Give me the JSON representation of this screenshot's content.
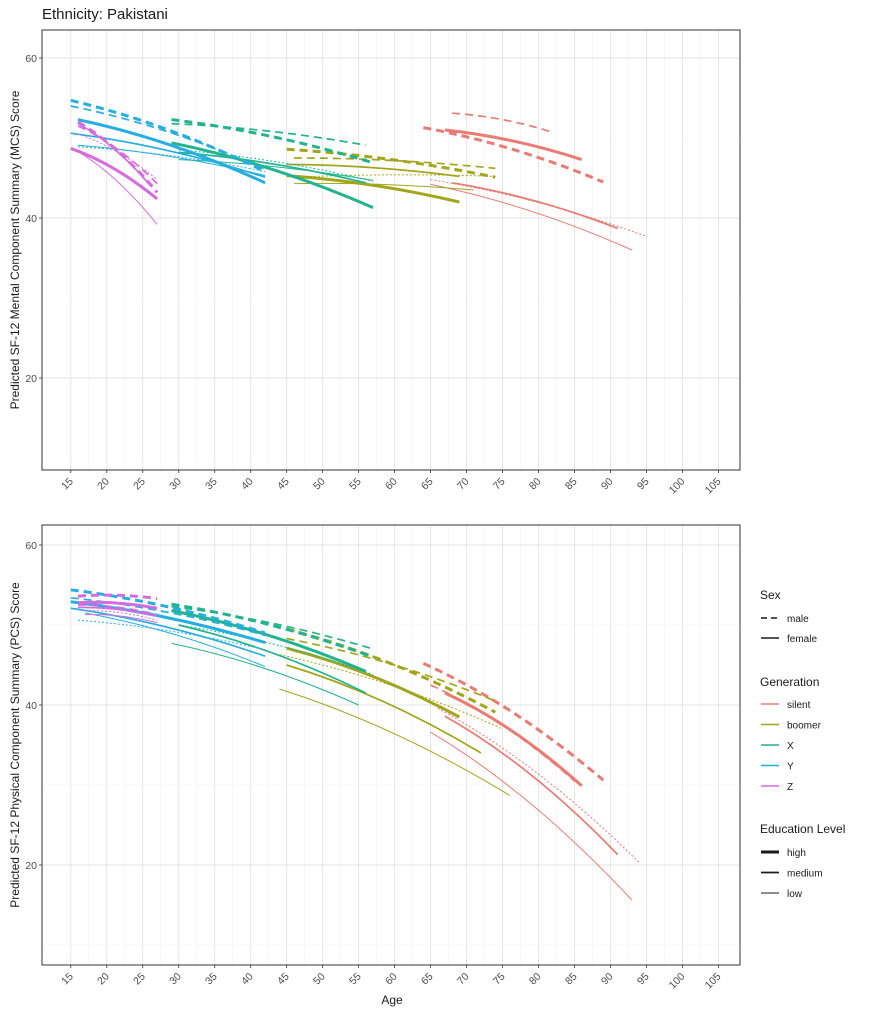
{
  "figure": {
    "title": "Ethnicity: Pakistani",
    "xlabel": "Age"
  },
  "colors": {
    "silent": "#e97b73",
    "boomer": "#a3a51d",
    "X": "#22b38f",
    "Y": "#26aee0",
    "Z": "#d46cde",
    "grid_major": "#e3e3e3",
    "grid_minor": "#f1f1f1",
    "panel_border": "#333333"
  },
  "legend": {
    "sex": {
      "title": "Sex",
      "items": [
        {
          "key": "male",
          "label": "male"
        },
        {
          "key": "female",
          "label": "female"
        }
      ]
    },
    "generation": {
      "title": "Generation",
      "items": [
        {
          "key": "silent",
          "label": "silent"
        },
        {
          "key": "boomer",
          "label": "boomer"
        },
        {
          "key": "X",
          "label": "X"
        },
        {
          "key": "Y",
          "label": "Y"
        },
        {
          "key": "Z",
          "label": "Z"
        }
      ]
    },
    "education": {
      "title": "Education Level",
      "items": [
        {
          "key": "high",
          "label": "high"
        },
        {
          "key": "medium",
          "label": "medium"
        },
        {
          "key": "low",
          "label": "low"
        }
      ]
    }
  },
  "chart_data": [
    {
      "type": "line",
      "id": "mcs",
      "title": "Ethnicity: Pakistani",
      "xlabel": "",
      "ylabel": "Predicted SF-12 Mental Component Summary (MCS) Score",
      "xlim": [
        11,
        108
      ],
      "ylim": [
        8.5,
        63.5
      ],
      "x_ticks": [
        15,
        20,
        25,
        30,
        35,
        40,
        45,
        50,
        55,
        60,
        65,
        70,
        75,
        80,
        85,
        90,
        95,
        100,
        105
      ],
      "y_ticks": [
        20,
        40,
        60
      ],
      "grid": true,
      "series": [
        {
          "generation": "silent",
          "sex": "male",
          "education": "high",
          "x": [
            64,
            89
          ],
          "y": [
            51.3,
            44.5
          ]
        },
        {
          "generation": "silent",
          "sex": "male",
          "education": "medium",
          "x": [
            68,
            82
          ],
          "y": [
            53.1,
            50.7
          ]
        },
        {
          "generation": "silent",
          "sex": "male",
          "education": "low",
          "x": [
            65,
            95
          ],
          "y": [
            44.8,
            37.7
          ]
        },
        {
          "generation": "silent",
          "sex": "female",
          "education": "high",
          "x": [
            67,
            86
          ],
          "y": [
            51,
            47.3
          ]
        },
        {
          "generation": "silent",
          "sex": "female",
          "education": "medium",
          "x": [
            68,
            91
          ],
          "y": [
            44.4,
            38.7
          ]
        },
        {
          "generation": "silent",
          "sex": "female",
          "education": "low",
          "x": [
            65,
            93
          ],
          "y": [
            44.2,
            36
          ]
        },
        {
          "generation": "boomer",
          "sex": "male",
          "education": "high",
          "x": [
            45,
            74
          ],
          "y": [
            48.6,
            45.1
          ]
        },
        {
          "generation": "boomer",
          "sex": "male",
          "education": "medium",
          "x": [
            46,
            74
          ],
          "y": [
            47.5,
            46.2
          ]
        },
        {
          "generation": "boomer",
          "sex": "male",
          "education": "low",
          "x": [
            46,
            74
          ],
          "y": [
            45.1,
            45.2
          ]
        },
        {
          "generation": "boomer",
          "sex": "female",
          "education": "high",
          "x": [
            45,
            69
          ],
          "y": [
            45.3,
            42
          ]
        },
        {
          "generation": "boomer",
          "sex": "female",
          "education": "medium",
          "x": [
            45,
            69
          ],
          "y": [
            46.7,
            45.2
          ]
        },
        {
          "generation": "boomer",
          "sex": "female",
          "education": "low",
          "x": [
            46,
            71
          ],
          "y": [
            44.3,
            43.5
          ]
        },
        {
          "generation": "X",
          "sex": "male",
          "education": "high",
          "x": [
            29,
            57
          ],
          "y": [
            52.3,
            46.9
          ]
        },
        {
          "generation": "X",
          "sex": "male",
          "education": "medium",
          "x": [
            29,
            56
          ],
          "y": [
            51.8,
            49.1
          ]
        },
        {
          "generation": "X",
          "sex": "male",
          "education": "low",
          "x": [
            30,
            57
          ],
          "y": [
            48.5,
            44.6
          ]
        },
        {
          "generation": "X",
          "sex": "female",
          "education": "high",
          "x": [
            29,
            57
          ],
          "y": [
            49.4,
            41.3
          ]
        },
        {
          "generation": "X",
          "sex": "female",
          "education": "medium",
          "x": [
            30,
            56
          ],
          "y": [
            48.2,
            44.4
          ]
        },
        {
          "generation": "X",
          "sex": "female",
          "education": "low",
          "x": [
            30,
            57
          ],
          "y": [
            47.3,
            44.7
          ]
        },
        {
          "generation": "Y",
          "sex": "male",
          "education": "high",
          "x": [
            15,
            42
          ],
          "y": [
            54.7,
            45.8
          ]
        },
        {
          "generation": "Y",
          "sex": "male",
          "education": "medium",
          "x": [
            15,
            42
          ],
          "y": [
            54,
            46.1
          ]
        },
        {
          "generation": "Y",
          "sex": "male",
          "education": "low",
          "x": [
            16,
            42
          ],
          "y": [
            48.9,
            45.8
          ]
        },
        {
          "generation": "Y",
          "sex": "female",
          "education": "high",
          "x": [
            16,
            42
          ],
          "y": [
            52.3,
            44.4
          ]
        },
        {
          "generation": "Y",
          "sex": "female",
          "education": "medium",
          "x": [
            15,
            42
          ],
          "y": [
            50.6,
            45.1
          ]
        },
        {
          "generation": "Y",
          "sex": "female",
          "education": "low",
          "x": [
            16,
            42
          ],
          "y": [
            49.1,
            45.3
          ]
        },
        {
          "generation": "Z",
          "sex": "male",
          "education": "high",
          "x": [
            16,
            27
          ],
          "y": [
            52,
            43.2
          ]
        },
        {
          "generation": "Z",
          "sex": "male",
          "education": "medium",
          "x": [
            16,
            27
          ],
          "y": [
            51.5,
            44.3
          ]
        },
        {
          "generation": "Z",
          "sex": "male",
          "education": "low",
          "x": [
            16,
            27
          ],
          "y": [
            50.5,
            44.8
          ]
        },
        {
          "generation": "Z",
          "sex": "female",
          "education": "high",
          "x": [
            15,
            27
          ],
          "y": [
            48.7,
            42.4
          ]
        },
        {
          "generation": "Z",
          "sex": "female",
          "education": "medium",
          "x": [
            16,
            26
          ],
          "y": [
            51.8,
            44.1
          ]
        },
        {
          "generation": "Z",
          "sex": "female",
          "education": "low",
          "x": [
            16,
            27
          ],
          "y": [
            48.3,
            39.2
          ]
        }
      ]
    },
    {
      "type": "line",
      "id": "pcs",
      "title": "",
      "xlabel": "Age",
      "ylabel": "Predicted SF-12 Physical Component Summary (PCS) Score",
      "xlim": [
        11,
        108
      ],
      "ylim": [
        7.5,
        62.5
      ],
      "x_ticks": [
        15,
        20,
        25,
        30,
        35,
        40,
        45,
        50,
        55,
        60,
        65,
        70,
        75,
        80,
        85,
        90,
        95,
        100,
        105
      ],
      "y_ticks": [
        20,
        40,
        60
      ],
      "grid": true,
      "series": [
        {
          "generation": "silent",
          "sex": "male",
          "education": "high",
          "x": [
            64,
            89
          ],
          "y": [
            45.2,
            30.6
          ]
        },
        {
          "generation": "silent",
          "sex": "male",
          "education": "medium",
          "x": [
            65,
            85
          ],
          "y": [
            42.5,
            30.5
          ]
        },
        {
          "generation": "silent",
          "sex": "male",
          "education": "low",
          "x": [
            66,
            94
          ],
          "y": [
            39.6,
            20.3
          ]
        },
        {
          "generation": "silent",
          "sex": "female",
          "education": "high",
          "x": [
            67,
            86
          ],
          "y": [
            41.5,
            29.9
          ]
        },
        {
          "generation": "silent",
          "sex": "female",
          "education": "medium",
          "x": [
            67,
            91
          ],
          "y": [
            38.6,
            21.3
          ]
        },
        {
          "generation": "silent",
          "sex": "female",
          "education": "low",
          "x": [
            65,
            93
          ],
          "y": [
            36.6,
            15.6
          ]
        },
        {
          "generation": "boomer",
          "sex": "male",
          "education": "high",
          "x": [
            45,
            74
          ],
          "y": [
            49.5,
            39.1
          ]
        },
        {
          "generation": "boomer",
          "sex": "male",
          "education": "medium",
          "x": [
            45,
            74
          ],
          "y": [
            48.3,
            40.5
          ]
        },
        {
          "generation": "boomer",
          "sex": "male",
          "education": "low",
          "x": [
            44,
            75
          ],
          "y": [
            46.3,
            37
          ]
        },
        {
          "generation": "boomer",
          "sex": "female",
          "education": "high",
          "x": [
            45,
            69
          ],
          "y": [
            47.1,
            38.5
          ]
        },
        {
          "generation": "boomer",
          "sex": "female",
          "education": "medium",
          "x": [
            45,
            72
          ],
          "y": [
            45,
            34
          ]
        },
        {
          "generation": "boomer",
          "sex": "female",
          "education": "low",
          "x": [
            44,
            76
          ],
          "y": [
            42,
            28.7
          ]
        },
        {
          "generation": "X",
          "sex": "male",
          "education": "high",
          "x": [
            29,
            57
          ],
          "y": [
            52.6,
            46
          ]
        },
        {
          "generation": "X",
          "sex": "male",
          "education": "medium",
          "x": [
            29,
            57
          ],
          "y": [
            52.3,
            47
          ]
        },
        {
          "generation": "X",
          "sex": "male",
          "education": "low",
          "x": [
            30,
            57
          ],
          "y": [
            50,
            43.8
          ]
        },
        {
          "generation": "X",
          "sex": "female",
          "education": "high",
          "x": [
            29,
            56
          ],
          "y": [
            51.8,
            44.2
          ]
        },
        {
          "generation": "X",
          "sex": "female",
          "education": "medium",
          "x": [
            30,
            56
          ],
          "y": [
            50,
            41.5
          ]
        },
        {
          "generation": "X",
          "sex": "female",
          "education": "low",
          "x": [
            29,
            55
          ],
          "y": [
            47.7,
            40
          ]
        },
        {
          "generation": "Y",
          "sex": "male",
          "education": "high",
          "x": [
            15,
            42
          ],
          "y": [
            54.4,
            49
          ]
        },
        {
          "generation": "Y",
          "sex": "male",
          "education": "medium",
          "x": [
            15,
            42
          ],
          "y": [
            53.4,
            48.7
          ]
        },
        {
          "generation": "Y",
          "sex": "male",
          "education": "low",
          "x": [
            16,
            42
          ],
          "y": [
            50.6,
            46.9
          ]
        },
        {
          "generation": "Y",
          "sex": "female",
          "education": "high",
          "x": [
            15,
            42
          ],
          "y": [
            52.9,
            47.8
          ]
        },
        {
          "generation": "Y",
          "sex": "female",
          "education": "medium",
          "x": [
            15,
            42
          ],
          "y": [
            52.1,
            46.1
          ]
        },
        {
          "generation": "Y",
          "sex": "female",
          "education": "low",
          "x": [
            17,
            42
          ],
          "y": [
            51.5,
            44.8
          ]
        },
        {
          "generation": "Z",
          "sex": "male",
          "education": "high",
          "x": [
            16,
            27
          ],
          "y": [
            53.6,
            53.3
          ]
        },
        {
          "generation": "Z",
          "sex": "male",
          "education": "medium",
          "x": [
            16,
            27
          ],
          "y": [
            52.5,
            51.3
          ]
        },
        {
          "generation": "Z",
          "sex": "male",
          "education": "low",
          "x": [
            17,
            27
          ],
          "y": [
            51.8,
            50.6
          ]
        },
        {
          "generation": "Z",
          "sex": "female",
          "education": "high",
          "x": [
            16,
            27
          ],
          "y": [
            52.8,
            52.1
          ]
        },
        {
          "generation": "Z",
          "sex": "female",
          "education": "medium",
          "x": [
            16,
            27
          ],
          "y": [
            52.2,
            51.1
          ]
        },
        {
          "generation": "Z",
          "sex": "female",
          "education": "low",
          "x": [
            17,
            27
          ],
          "y": [
            51.3,
            50.3
          ]
        }
      ]
    }
  ]
}
